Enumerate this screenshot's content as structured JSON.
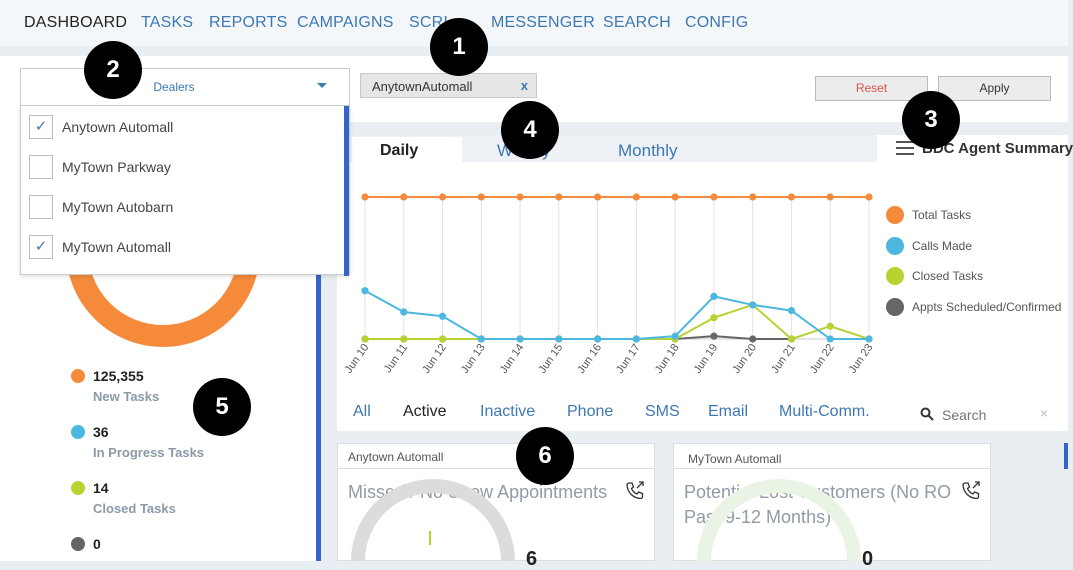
{
  "nav": {
    "items": [
      "DASHBOARD",
      "TASKS",
      "REPORTS",
      "CAMPAIGNS",
      "SCRI",
      "MESSENGER",
      "SEARCH",
      "CONFIG"
    ]
  },
  "filters": {
    "dealer_select_label": "Dealers",
    "chip_label": "AnytownAutomall",
    "chip_remove": "x",
    "reset_label": "Reset",
    "apply_label": "Apply",
    "dealers": [
      {
        "label": "Anytown Automall",
        "checked": true
      },
      {
        "label": "MyTown  Parkway",
        "checked": false
      },
      {
        "label": "MyTown Autobarn",
        "checked": false
      },
      {
        "label": "MyTown Automall",
        "checked": true
      }
    ]
  },
  "summary": {
    "stats": [
      {
        "value": "125,355",
        "label": "New Tasks",
        "color": "#f58b3a"
      },
      {
        "value": "36",
        "label": "In Progress Tasks",
        "color": "#4cb8e0"
      },
      {
        "value": "14",
        "label": "Closed Tasks",
        "color": "#b7d332"
      },
      {
        "value": "0",
        "label": "",
        "color": "#666666"
      }
    ],
    "donut_color": "#f58b3a"
  },
  "chart_tabs": {
    "daily": "Daily",
    "weekly": "W",
    "weekly_tail": "y",
    "monthly": "Monthly",
    "title": "BDC Agent Summary"
  },
  "chart_data": {
    "type": "line",
    "categories": [
      "Jun 10",
      "Jun 11",
      "Jun 12",
      "Jun 13",
      "Jun 14",
      "Jun 15",
      "Jun 16",
      "Jun 17",
      "Jun 18",
      "Jun 19",
      "Jun 20",
      "Jun 21",
      "Jun 22",
      "Jun 23"
    ],
    "series": [
      {
        "name": "Total Tasks",
        "color": "#f58b3a",
        "values": [
          100,
          100,
          100,
          100,
          100,
          100,
          100,
          100,
          100,
          100,
          100,
          100,
          100,
          100
        ]
      },
      {
        "name": "Calls Made",
        "color": "#4cb8e0",
        "values": [
          34,
          19,
          16,
          0,
          0,
          0,
          0,
          0,
          2,
          30,
          24,
          20,
          0,
          0
        ]
      },
      {
        "name": "Closed Tasks",
        "color": "#b7d332",
        "values": [
          0,
          0,
          0,
          0,
          0,
          0,
          0,
          0,
          0,
          15,
          24,
          0,
          9,
          0
        ]
      },
      {
        "name": "Appts Scheduled/Confirmed",
        "color": "#666666",
        "values": [
          0,
          0,
          0,
          0,
          0,
          0,
          0,
          0,
          0,
          2,
          0,
          0,
          null,
          null
        ]
      }
    ],
    "ylim": [
      0,
      100
    ],
    "grid": "vertical",
    "legend": "right"
  },
  "channel_tabs": [
    "All",
    "Active",
    "Inactive",
    "Phone",
    "SMS",
    "Email",
    "Multi-Comm."
  ],
  "search": {
    "placeholder": "Search",
    "clear": "×"
  },
  "cards": [
    {
      "dealer": "Anytown Automall",
      "title": "Missed / No Show Appointments",
      "value_glyph": "6"
    },
    {
      "dealer": "MyTown Automall",
      "title_line1": "Potential Lost Customers (No RO",
      "title_line2": "Past 9-12 Months)",
      "value_glyph": "0"
    }
  ],
  "markers": [
    "1",
    "2",
    "3",
    "4",
    "5",
    "6"
  ]
}
